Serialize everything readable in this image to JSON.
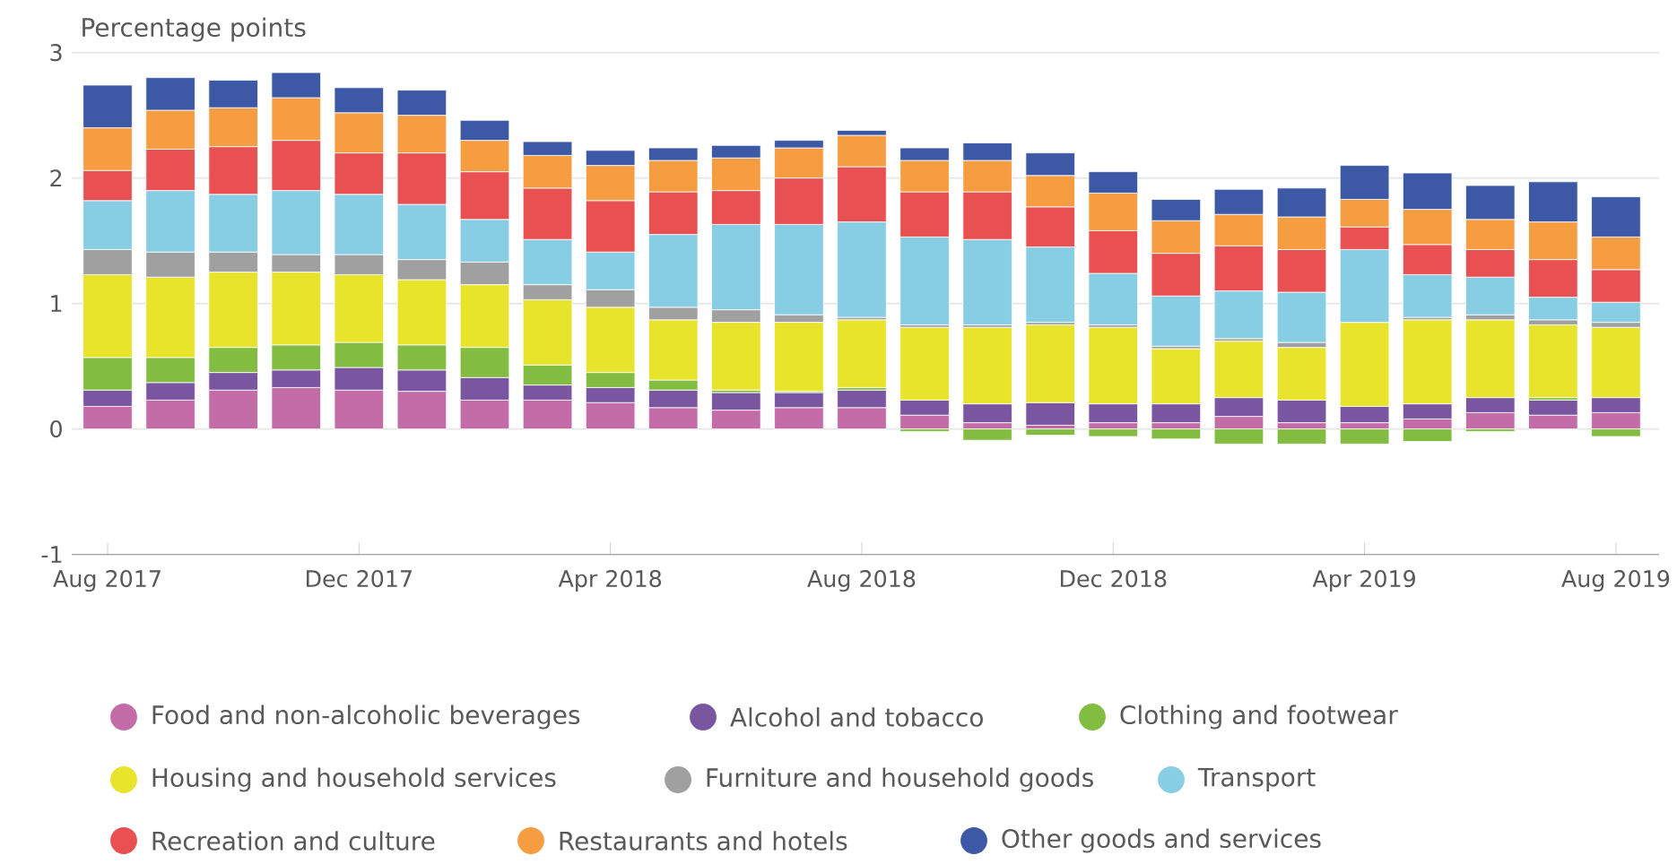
{
  "chart_data": {
    "type": "bar",
    "stacked": true,
    "ylabel": "Percentage points",
    "categories": [
      "Aug 2017",
      null,
      null,
      null,
      "Dec 2017",
      null,
      null,
      null,
      "Apr 2018",
      null,
      null,
      null,
      "Aug 2018",
      null,
      null,
      null,
      "Dec 2018",
      null,
      null,
      null,
      "Apr 2019",
      null,
      null,
      null,
      "Aug 2019"
    ],
    "ylim": [
      -1,
      3
    ],
    "yticks": [
      -1,
      0,
      1,
      2,
      3
    ],
    "grid": "y",
    "legend": "bottom",
    "series": [
      {
        "name": "Food and non-alcoholic beverages",
        "color": "#c36ca8",
        "values": [
          0.18,
          0.23,
          0.31,
          0.33,
          0.31,
          0.3,
          0.23,
          0.23,
          0.21,
          0.17,
          0.15,
          0.17,
          0.17,
          0.11,
          0.05,
          0.03,
          0.05,
          0.05,
          0.1,
          0.05,
          0.05,
          0.08,
          0.13,
          0.11,
          0.13
        ]
      },
      {
        "name": "Alcohol and tobacco",
        "color": "#7a55a0",
        "values": [
          0.13,
          0.14,
          0.14,
          0.14,
          0.18,
          0.17,
          0.18,
          0.12,
          0.12,
          0.14,
          0.14,
          0.12,
          0.14,
          0.12,
          0.15,
          0.18,
          0.15,
          0.15,
          0.15,
          0.18,
          0.13,
          0.12,
          0.12,
          0.12,
          0.12
        ]
      },
      {
        "name": "Clothing and footwear",
        "color": "#82bd41",
        "values": [
          0.26,
          0.2,
          0.2,
          0.2,
          0.2,
          0.2,
          0.24,
          0.16,
          0.12,
          0.08,
          0.02,
          0.01,
          0.02,
          -0.02,
          -0.09,
          -0.05,
          -0.06,
          -0.08,
          -0.12,
          -0.12,
          -0.12,
          -0.1,
          -0.02,
          0.02,
          -0.06
        ]
      },
      {
        "name": "Housing and household services",
        "color": "#e8e32b",
        "values": [
          0.66,
          0.64,
          0.6,
          0.58,
          0.54,
          0.52,
          0.5,
          0.52,
          0.52,
          0.48,
          0.54,
          0.55,
          0.54,
          0.58,
          0.61,
          0.62,
          0.61,
          0.44,
          0.45,
          0.42,
          0.67,
          0.67,
          0.62,
          0.58,
          0.56
        ]
      },
      {
        "name": "Furniture and household goods",
        "color": "#a0a0a0",
        "values": [
          0.2,
          0.2,
          0.16,
          0.14,
          0.16,
          0.16,
          0.18,
          0.12,
          0.14,
          0.1,
          0.1,
          0.06,
          0.02,
          0.02,
          0.02,
          0.02,
          0.02,
          0.02,
          0.02,
          0.04,
          0.0,
          0.02,
          0.04,
          0.04,
          0.04
        ]
      },
      {
        "name": "Transport",
        "color": "#87cde4",
        "values": [
          0.39,
          0.49,
          0.46,
          0.51,
          0.48,
          0.44,
          0.34,
          0.36,
          0.3,
          0.58,
          0.68,
          0.72,
          0.76,
          0.7,
          0.68,
          0.6,
          0.41,
          0.4,
          0.38,
          0.4,
          0.58,
          0.34,
          0.3,
          0.18,
          0.16
        ]
      },
      {
        "name": "Recreation and culture",
        "color": "#e85052",
        "values": [
          0.24,
          0.33,
          0.38,
          0.4,
          0.33,
          0.41,
          0.38,
          0.41,
          0.41,
          0.34,
          0.27,
          0.37,
          0.44,
          0.36,
          0.38,
          0.32,
          0.34,
          0.34,
          0.36,
          0.34,
          0.18,
          0.24,
          0.22,
          0.3,
          0.26
        ]
      },
      {
        "name": "Restaurants and hotels",
        "color": "#f59d40",
        "values": [
          0.34,
          0.31,
          0.31,
          0.34,
          0.32,
          0.3,
          0.25,
          0.26,
          0.28,
          0.25,
          0.26,
          0.24,
          0.25,
          0.25,
          0.25,
          0.25,
          0.3,
          0.26,
          0.25,
          0.26,
          0.22,
          0.28,
          0.24,
          0.3,
          0.26
        ]
      },
      {
        "name": "Other goods and services",
        "color": "#3d58a4",
        "values": [
          0.34,
          0.26,
          0.22,
          0.2,
          0.2,
          0.2,
          0.16,
          0.11,
          0.12,
          0.1,
          0.1,
          0.06,
          0.04,
          0.1,
          0.14,
          0.18,
          0.17,
          0.17,
          0.2,
          0.23,
          0.27,
          0.29,
          0.27,
          0.32,
          0.32
        ]
      }
    ]
  }
}
